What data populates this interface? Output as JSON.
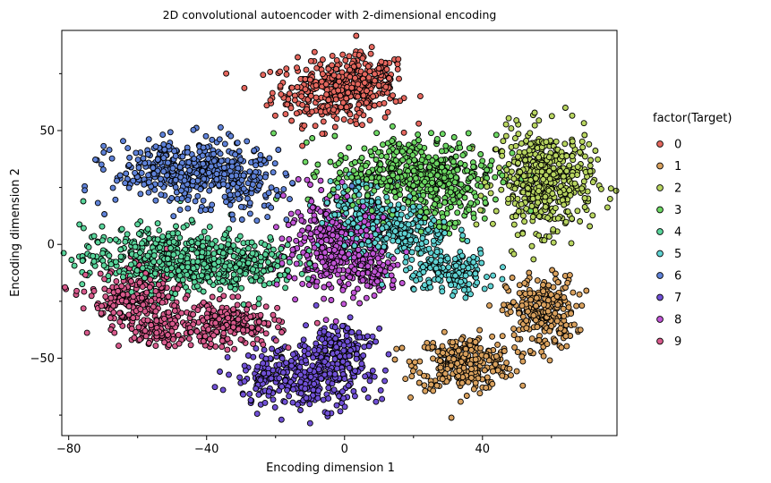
{
  "chart_data": {
    "type": "scatter",
    "title": "2D convolutional autoencoder with 2-dimensional encoding",
    "xlabel": "Encoding dimension 1",
    "ylabel": "Encoding dimension 2",
    "xlim": [
      -82,
      79
    ],
    "ylim": [
      -84,
      94
    ],
    "x_ticks": [
      -80,
      -40,
      0,
      40
    ],
    "x_ticks_labels": [
      "−80",
      "−40",
      "0",
      "40"
    ],
    "y_ticks": [
      -50,
      0,
      50
    ],
    "y_ticks_labels": [
      "−50",
      "0",
      "50"
    ],
    "grid": false,
    "legend": {
      "title": "factor(Target)",
      "placement": "right",
      "entries": [
        "0",
        "1",
        "2",
        "3",
        "4",
        "5",
        "6",
        "7",
        "8",
        "9"
      ]
    },
    "marker_edge_color": "#000000",
    "series": [
      {
        "name": "0",
        "color": "#E5675E",
        "clusters": [
          {
            "cx": -3,
            "cy": 67,
            "sx": 9,
            "sy": 7,
            "n": 320
          },
          {
            "cx": 6,
            "cy": 72,
            "sx": 6,
            "sy": 6,
            "n": 120
          }
        ]
      },
      {
        "name": "1",
        "color": "#D9A15E",
        "clusters": [
          {
            "cx": 35,
            "cy": -52,
            "sx": 7,
            "sy": 6,
            "n": 300
          },
          {
            "cx": 57,
            "cy": -30,
            "sx": 5,
            "sy": 8,
            "n": 250
          }
        ]
      },
      {
        "name": "2",
        "color": "#B8D560",
        "clusters": [
          {
            "cx": 58,
            "cy": 28,
            "sx": 7,
            "sy": 11,
            "n": 480
          }
        ]
      },
      {
        "name": "3",
        "color": "#6DD763",
        "clusters": [
          {
            "cx": 20,
            "cy": 32,
            "sx": 12,
            "sy": 8,
            "n": 420
          },
          {
            "cx": 28,
            "cy": 20,
            "sx": 6,
            "sy": 8,
            "n": 120
          }
        ]
      },
      {
        "name": "4",
        "color": "#59D59B",
        "clusters": [
          {
            "cx": -52,
            "cy": -6,
            "sx": 12,
            "sy": 7,
            "n": 420
          },
          {
            "cx": -30,
            "cy": -8,
            "sx": 8,
            "sy": 6,
            "n": 180
          }
        ]
      },
      {
        "name": "5",
        "color": "#5FD3D3",
        "clusters": [
          {
            "cx": 15,
            "cy": 5,
            "sx": 8,
            "sy": 6,
            "n": 250
          },
          {
            "cx": 30,
            "cy": -12,
            "sx": 7,
            "sy": 5,
            "n": 160
          },
          {
            "cx": 4,
            "cy": 18,
            "sx": 5,
            "sy": 5,
            "n": 100
          }
        ]
      },
      {
        "name": "6",
        "color": "#5F82D8",
        "clusters": [
          {
            "cx": -45,
            "cy": 32,
            "sx": 11,
            "sy": 7,
            "n": 430
          },
          {
            "cx": -28,
            "cy": 24,
            "sx": 5,
            "sy": 6,
            "n": 80
          }
        ]
      },
      {
        "name": "7",
        "color": "#7050D6",
        "clusters": [
          {
            "cx": -12,
            "cy": -58,
            "sx": 10,
            "sy": 7,
            "n": 330
          },
          {
            "cx": -2,
            "cy": -45,
            "sx": 5,
            "sy": 6,
            "n": 140
          }
        ]
      },
      {
        "name": "8",
        "color": "#C155D6",
        "clusters": [
          {
            "cx": -3,
            "cy": 0,
            "sx": 7,
            "sy": 10,
            "n": 380
          },
          {
            "cx": 8,
            "cy": -12,
            "sx": 4,
            "sy": 5,
            "n": 100
          }
        ]
      },
      {
        "name": "9",
        "color": "#D85A8C",
        "clusters": [
          {
            "cx": -60,
            "cy": -25,
            "sx": 7,
            "sy": 7,
            "n": 250
          },
          {
            "cx": -33,
            "cy": -35,
            "sx": 7,
            "sy": 5,
            "n": 200
          },
          {
            "cx": -52,
            "cy": -37,
            "sx": 5,
            "sy": 4,
            "n": 100
          }
        ]
      }
    ]
  }
}
